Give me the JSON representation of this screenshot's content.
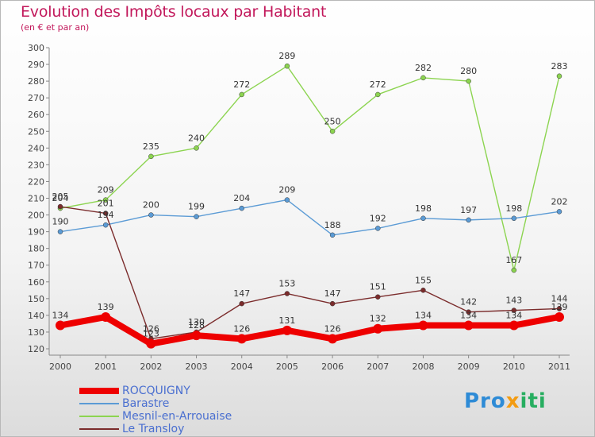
{
  "header": {
    "title": "Evolution des Impôts locaux par Habitant",
    "subtitle": "(en € et par an)"
  },
  "logo": {
    "part1": "Pro",
    "part2": "x",
    "part3": "iti"
  },
  "chart_data": {
    "type": "line",
    "categories": [
      "2000",
      "2001",
      "2002",
      "2003",
      "2004",
      "2005",
      "2006",
      "2007",
      "2008",
      "2009",
      "2010",
      "2011"
    ],
    "ylim": [
      120,
      300
    ],
    "ytick_step": 10,
    "grid": false,
    "legend_placement": "bottom-left",
    "series": [
      {
        "name": "ROCQUIGNY",
        "color": "#ee0000",
        "values": [
          134,
          139,
          123,
          128,
          126,
          131,
          126,
          132,
          134,
          134,
          134,
          139
        ],
        "labels": [
          "134",
          "139",
          "123",
          "128",
          "126",
          "131",
          "126",
          "132",
          "134",
          "134",
          "134",
          "139"
        ]
      },
      {
        "name": "Barastre",
        "color": "#5b9bd5",
        "values": [
          190,
          194,
          200,
          199,
          204,
          209,
          188,
          192,
          198,
          197,
          198,
          202
        ],
        "labels": [
          "190",
          "194",
          "200",
          "199",
          "204",
          "209",
          "188",
          "192",
          "198",
          "197",
          "198",
          "202"
        ]
      },
      {
        "name": "Mesnil-en-Arrouaise",
        "color": "#8cd450",
        "values": [
          204,
          209,
          235,
          240,
          272,
          289,
          250,
          272,
          282,
          280,
          167,
          283
        ],
        "labels": [
          "204",
          "209",
          "235",
          "240",
          "272",
          "289",
          "250",
          "272",
          "282",
          "280",
          "167",
          "283"
        ]
      },
      {
        "name": "Le Transloy",
        "color": "#7b2c2c",
        "values": [
          205,
          201,
          126,
          130,
          147,
          153,
          147,
          151,
          155,
          142,
          143,
          144
        ],
        "labels": [
          "205",
          "201",
          "126",
          "130",
          "147",
          "153",
          "147",
          "151",
          "155",
          "142",
          "143",
          "144"
        ]
      }
    ]
  }
}
